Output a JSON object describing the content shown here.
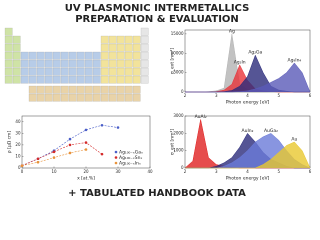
{
  "title": "UV PLASMONIC INTERMETALLICS",
  "subtitle": "PREPARATION & EVALUATION",
  "footer": "+ TABULATED HANDBOOK DATA",
  "chart_data": [
    {
      "type": "area",
      "xlabel": "Photon energy [eV]",
      "ylabel": "σ_ext [nm²]",
      "x": [
        2,
        2.25,
        2.5,
        2.75,
        3,
        3.25,
        3.5,
        3.75,
        4,
        4.25,
        4.5,
        4.75,
        5,
        5.25,
        5.5,
        5.75,
        6
      ],
      "xlim": [
        2,
        6
      ],
      "xticks": [
        2,
        3,
        4,
        5,
        6
      ],
      "ylim": [
        0,
        16000
      ],
      "yticks": [
        0,
        5000,
        10000,
        15000
      ],
      "series": [
        {
          "name": "Ag",
          "color": "#b3b3b3",
          "values": [
            0,
            0,
            0,
            100,
            300,
            1000,
            15000,
            2000,
            600,
            200,
            100,
            0,
            0,
            0,
            0,
            0,
            0
          ]
        },
        {
          "name": "Ag₃In",
          "color": "#e8333a",
          "values": [
            0,
            0,
            0,
            0,
            100,
            500,
            2000,
            7000,
            3000,
            800,
            300,
            100,
            0,
            0,
            0,
            0,
            0
          ]
        },
        {
          "name": "Ag₂Ga",
          "color": "#2a2a7a",
          "values": [
            0,
            0,
            0,
            0,
            0,
            100,
            400,
            1500,
            4000,
            9500,
            5000,
            1500,
            500,
            200,
            0,
            0,
            0
          ]
        },
        {
          "name": "Ag₉In₄",
          "color": "#5a5ab8",
          "values": [
            0,
            0,
            0,
            0,
            0,
            0,
            0,
            100,
            300,
            800,
            1500,
            2500,
            3500,
            5000,
            7500,
            5000,
            0
          ]
        }
      ]
    },
    {
      "type": "scatter",
      "xlabel": "x [at.%]",
      "ylabel": "ρ [μΩ cm]",
      "xlim": [
        0,
        40
      ],
      "xticks": [
        0,
        10,
        20,
        30,
        40
      ],
      "ylim": [
        0,
        45
      ],
      "yticks": [
        0,
        10,
        20,
        30,
        40
      ],
      "series": [
        {
          "name": "Ag₁₀₀₋ₓGaₓ",
          "color": "#4a5ec8",
          "x": [
            0,
            5,
            10,
            15,
            20,
            25,
            30
          ],
          "values": [
            2,
            8,
            15,
            25,
            33,
            37,
            35
          ]
        },
        {
          "name": "Ag₁₀₀₋ₓSnₓ",
          "color": "#d42a2a",
          "x": [
            0,
            5,
            10,
            15,
            20,
            25
          ],
          "values": [
            2,
            8,
            14,
            20,
            22,
            12
          ]
        },
        {
          "name": "Ag₁₀₀₋ₓInₓ",
          "color": "#e8923a",
          "x": [
            0,
            5,
            10,
            15,
            20
          ],
          "values": [
            2,
            5,
            9,
            13,
            16
          ]
        }
      ]
    },
    {
      "type": "area",
      "xlabel": "Photon energy [eV]",
      "ylabel": "σ_ext [nm²]",
      "x": [
        2,
        2.25,
        2.5,
        2.75,
        3,
        3.25,
        3.5,
        3.75,
        4,
        4.25,
        4.5,
        4.75,
        5,
        5.25,
        5.5,
        5.75,
        6
      ],
      "xlim": [
        2,
        6
      ],
      "xticks": [
        2,
        3,
        4,
        5,
        6
      ],
      "ylim": [
        0,
        3000
      ],
      "yticks": [
        0,
        1000,
        2000,
        3000
      ],
      "series": [
        {
          "name": "AuAl₂",
          "color": "#e02020",
          "values": [
            0,
            400,
            2800,
            600,
            200,
            100,
            50,
            0,
            0,
            0,
            0,
            0,
            0,
            0,
            0,
            0,
            0
          ]
        },
        {
          "name": "AuIn₂",
          "color": "#2a2a7a",
          "values": [
            0,
            0,
            0,
            0,
            100,
            300,
            600,
            1200,
            2000,
            1500,
            900,
            500,
            300,
            100,
            0,
            0,
            0
          ]
        },
        {
          "name": "AuGa₂",
          "color": "#6a7ad8",
          "values": [
            0,
            0,
            0,
            0,
            0,
            100,
            300,
            600,
            1000,
            1500,
            1800,
            2000,
            1600,
            1000,
            500,
            200,
            0
          ]
        },
        {
          "name": "Au",
          "color": "#e8c830",
          "values": [
            0,
            0,
            0,
            0,
            0,
            0,
            0,
            0,
            0,
            0,
            200,
            500,
            900,
            1300,
            1500,
            1000,
            0
          ]
        }
      ]
    }
  ]
}
